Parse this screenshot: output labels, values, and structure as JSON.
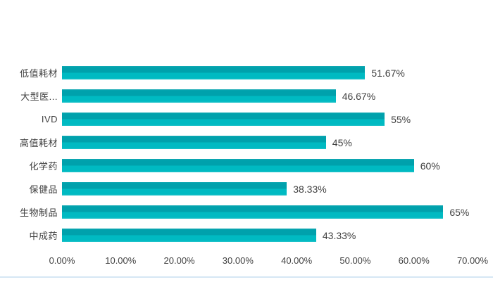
{
  "chart_data": {
    "type": "bar",
    "orientation": "horizontal",
    "title": "",
    "xlabel": "",
    "ylabel": "",
    "categories": [
      "低值耗材",
      "大型医...",
      "IVD",
      "高值耗材",
      "化学药",
      "保健品",
      "生物制品",
      "中成药"
    ],
    "values": [
      51.67,
      46.67,
      55,
      45,
      60,
      38.33,
      65,
      43.33
    ],
    "value_labels": [
      "51.67%",
      "46.67%",
      "55%",
      "45%",
      "60%",
      "38.33%",
      "65%",
      "43.33%"
    ],
    "x_ticks": [
      {
        "value": 0,
        "label": "0.00%"
      },
      {
        "value": 10,
        "label": "10.00%"
      },
      {
        "value": 20,
        "label": "20.00%"
      },
      {
        "value": 30,
        "label": "30.00%"
      },
      {
        "value": 40,
        "label": "40.00%"
      },
      {
        "value": 50,
        "label": "50.00%"
      },
      {
        "value": 60,
        "label": "60.00%"
      },
      {
        "value": 70,
        "label": "70.00%"
      }
    ],
    "xlim": [
      0,
      70
    ],
    "grid": false,
    "legend": false,
    "colors": {
      "bar": "#00AEB9",
      "bar_gradient_top": "#00A1AC",
      "bar_gradient_bottom": "#00BAC2",
      "text": "#404040",
      "background": "#FFFFFF",
      "bottom_rule": "#D6E7F4"
    }
  }
}
